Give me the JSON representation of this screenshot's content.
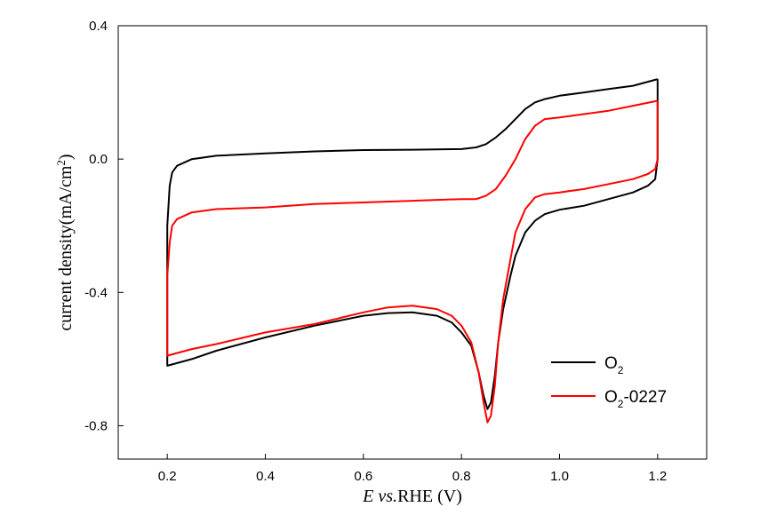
{
  "chart_data": {
    "type": "line",
    "title": "",
    "xlabel_italic": "E vs.",
    "xlabel_rest": "RHE (V)",
    "ylabel_main": "current density(mA/cm",
    "ylabel_sup": "2",
    "ylabel_end": ")",
    "xlim": [
      0.1,
      1.3
    ],
    "ylim": [
      -0.9,
      0.4
    ],
    "x_ticks": [
      0.2,
      0.4,
      0.6,
      0.8,
      1.0,
      1.2
    ],
    "x_tick_labels": [
      "0.2",
      "0.4",
      "0.6",
      "0.8",
      "1.0",
      "1.2"
    ],
    "y_ticks": [
      0.4,
      0.0,
      -0.4,
      -0.8
    ],
    "y_tick_labels": [
      "0.4",
      "0.0",
      "-0.4",
      "-0.8"
    ],
    "legend_position": "bottom-right",
    "series": [
      {
        "name": "O2",
        "name_main": "O",
        "name_sub": "2",
        "name_suffix": "",
        "color": "#000000",
        "points": [
          [
            1.2,
            0.24
          ],
          [
            1.15,
            0.22
          ],
          [
            1.1,
            0.21
          ],
          [
            1.05,
            0.2
          ],
          [
            1.0,
            0.19
          ],
          [
            0.97,
            0.18
          ],
          [
            0.95,
            0.17
          ],
          [
            0.93,
            0.15
          ],
          [
            0.91,
            0.12
          ],
          [
            0.89,
            0.09
          ],
          [
            0.87,
            0.065
          ],
          [
            0.85,
            0.045
          ],
          [
            0.83,
            0.035
          ],
          [
            0.8,
            0.03
          ],
          [
            0.7,
            0.028
          ],
          [
            0.6,
            0.027
          ],
          [
            0.5,
            0.023
          ],
          [
            0.4,
            0.017
          ],
          [
            0.3,
            0.01
          ],
          [
            0.25,
            0.0
          ],
          [
            0.22,
            -0.02
          ],
          [
            0.21,
            -0.04
          ],
          [
            0.205,
            -0.08
          ],
          [
            0.2,
            -0.2
          ],
          [
            0.2,
            -0.5
          ],
          [
            0.2,
            -0.62
          ],
          [
            0.25,
            -0.6
          ],
          [
            0.3,
            -0.575
          ],
          [
            0.4,
            -0.535
          ],
          [
            0.5,
            -0.5
          ],
          [
            0.6,
            -0.47
          ],
          [
            0.65,
            -0.462
          ],
          [
            0.7,
            -0.46
          ],
          [
            0.75,
            -0.47
          ],
          [
            0.78,
            -0.49
          ],
          [
            0.8,
            -0.52
          ],
          [
            0.82,
            -0.56
          ],
          [
            0.835,
            -0.64
          ],
          [
            0.845,
            -0.71
          ],
          [
            0.853,
            -0.75
          ],
          [
            0.86,
            -0.73
          ],
          [
            0.868,
            -0.65
          ],
          [
            0.875,
            -0.55
          ],
          [
            0.885,
            -0.45
          ],
          [
            0.9,
            -0.35
          ],
          [
            0.91,
            -0.29
          ],
          [
            0.93,
            -0.22
          ],
          [
            0.95,
            -0.185
          ],
          [
            0.97,
            -0.165
          ],
          [
            1.0,
            -0.152
          ],
          [
            1.05,
            -0.14
          ],
          [
            1.1,
            -0.12
          ],
          [
            1.15,
            -0.1
          ],
          [
            1.18,
            -0.08
          ],
          [
            1.195,
            -0.06
          ],
          [
            1.2,
            0.0
          ],
          [
            1.2,
            0.24
          ]
        ]
      },
      {
        "name": "O2-0227",
        "name_main": "O",
        "name_sub": "2",
        "name_suffix": "-0227",
        "color": "#ff0000",
        "points": [
          [
            1.2,
            0.175
          ],
          [
            1.15,
            0.16
          ],
          [
            1.1,
            0.145
          ],
          [
            1.05,
            0.135
          ],
          [
            1.0,
            0.125
          ],
          [
            0.97,
            0.12
          ],
          [
            0.95,
            0.1
          ],
          [
            0.93,
            0.06
          ],
          [
            0.91,
            0.0
          ],
          [
            0.89,
            -0.05
          ],
          [
            0.87,
            -0.09
          ],
          [
            0.85,
            -0.11
          ],
          [
            0.83,
            -0.12
          ],
          [
            0.8,
            -0.12
          ],
          [
            0.7,
            -0.125
          ],
          [
            0.6,
            -0.13
          ],
          [
            0.5,
            -0.135
          ],
          [
            0.4,
            -0.145
          ],
          [
            0.3,
            -0.15
          ],
          [
            0.25,
            -0.16
          ],
          [
            0.22,
            -0.18
          ],
          [
            0.21,
            -0.2
          ],
          [
            0.205,
            -0.25
          ],
          [
            0.2,
            -0.35
          ],
          [
            0.2,
            -0.5
          ],
          [
            0.2,
            -0.59
          ],
          [
            0.25,
            -0.57
          ],
          [
            0.3,
            -0.555
          ],
          [
            0.4,
            -0.52
          ],
          [
            0.5,
            -0.495
          ],
          [
            0.6,
            -0.46
          ],
          [
            0.65,
            -0.445
          ],
          [
            0.7,
            -0.44
          ],
          [
            0.75,
            -0.45
          ],
          [
            0.78,
            -0.47
          ],
          [
            0.8,
            -0.5
          ],
          [
            0.82,
            -0.55
          ],
          [
            0.835,
            -0.64
          ],
          [
            0.845,
            -0.73
          ],
          [
            0.853,
            -0.79
          ],
          [
            0.86,
            -0.77
          ],
          [
            0.868,
            -0.68
          ],
          [
            0.875,
            -0.55
          ],
          [
            0.885,
            -0.42
          ],
          [
            0.9,
            -0.3
          ],
          [
            0.91,
            -0.22
          ],
          [
            0.93,
            -0.15
          ],
          [
            0.95,
            -0.115
          ],
          [
            0.97,
            -0.105
          ],
          [
            1.0,
            -0.1
          ],
          [
            1.05,
            -0.09
          ],
          [
            1.1,
            -0.075
          ],
          [
            1.15,
            -0.06
          ],
          [
            1.18,
            -0.045
          ],
          [
            1.195,
            -0.03
          ],
          [
            1.2,
            0.0
          ],
          [
            1.2,
            0.175
          ]
        ]
      }
    ]
  }
}
